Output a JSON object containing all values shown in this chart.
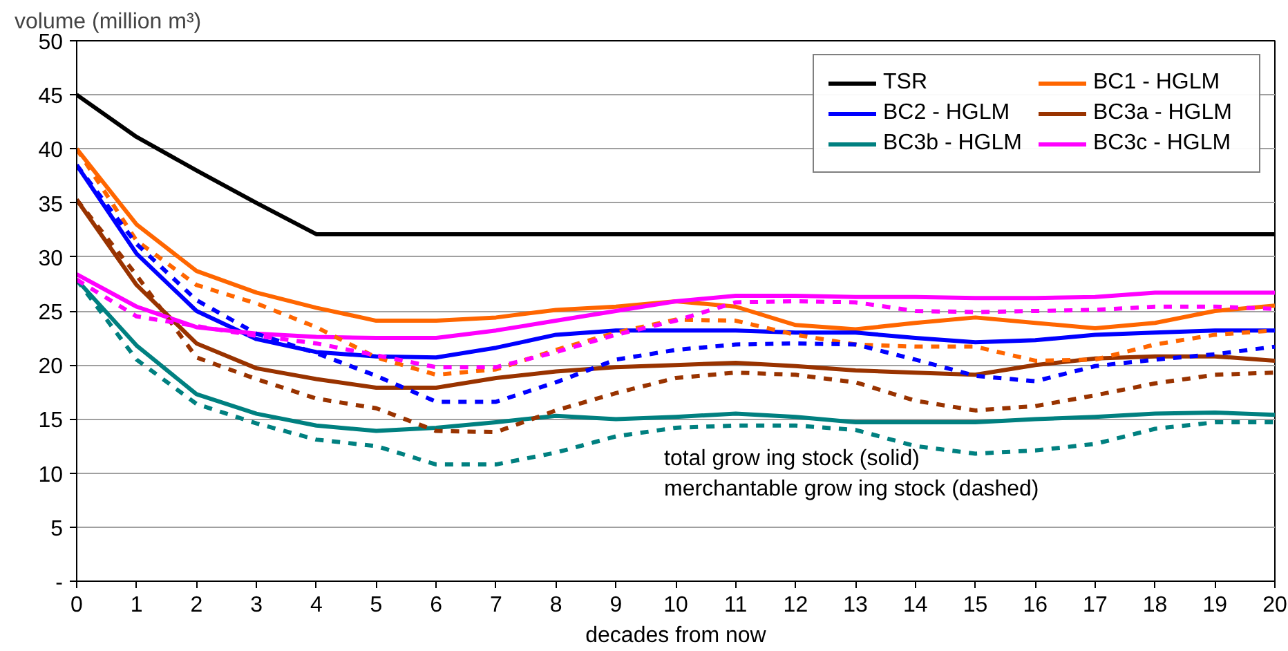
{
  "chart_data": {
    "type": "line",
    "ylabel": "volume (million m³)",
    "xlabel": "decades from now",
    "x": [
      0,
      1,
      2,
      3,
      4,
      5,
      6,
      7,
      8,
      9,
      10,
      11,
      12,
      13,
      14,
      15,
      16,
      17,
      18,
      19,
      20
    ],
    "xlim": [
      0,
      20
    ],
    "xticks": [
      0,
      1,
      2,
      3,
      4,
      5,
      6,
      7,
      8,
      9,
      10,
      11,
      12,
      13,
      14,
      15,
      16,
      17,
      18,
      19,
      20
    ],
    "ylim": [
      0,
      50
    ],
    "yticks": [
      {
        "value": 0,
        "label": "-"
      },
      5,
      10,
      15,
      20,
      25,
      30,
      35,
      40,
      45,
      50
    ],
    "grid": "y",
    "legend": "top right",
    "annotations": [
      "total grow ing stock (solid)",
      "merchantable grow ing stock (dashed)"
    ],
    "series": [
      {
        "name": "TSR",
        "color": "#000000",
        "line_style": "solid",
        "values": [
          45,
          41.1,
          38,
          35,
          32.1,
          32.1,
          32.1,
          32.1,
          32.1,
          32.1,
          32.1,
          32.1,
          32.1,
          32.1,
          32.1,
          32.1,
          32.1,
          32.1,
          32.1,
          32.1,
          32.1
        ]
      },
      {
        "name": "BC1 - HGLM",
        "color": "#ff6600",
        "line_style": "solid",
        "values": [
          40,
          33,
          28.7,
          26.7,
          25.3,
          24.1,
          24.1,
          24.4,
          25.1,
          25.4,
          25.9,
          25.4,
          23.7,
          23.3,
          23.9,
          24.4,
          23.9,
          23.4,
          23.9,
          25,
          25.5
        ]
      },
      {
        "name": "BC2 - HGLM",
        "color": "#0000ff",
        "line_style": "solid",
        "values": [
          38.5,
          30.3,
          25,
          22.4,
          21.2,
          20.8,
          20.7,
          21.6,
          22.8,
          23.2,
          23.2,
          23.2,
          23,
          23,
          22.5,
          22.1,
          22.3,
          22.8,
          23,
          23.2,
          23.2
        ]
      },
      {
        "name": "BC3a - HGLM",
        "color": "#993300",
        "line_style": "solid",
        "values": [
          35.3,
          27.4,
          22,
          19.7,
          18.7,
          17.9,
          17.9,
          18.8,
          19.4,
          19.8,
          20,
          20.2,
          19.9,
          19.5,
          19.3,
          19.1,
          20,
          20.6,
          20.8,
          20.8,
          20.4
        ]
      },
      {
        "name": "BC3b - HGLM",
        "color": "#008080",
        "line_style": "solid",
        "values": [
          27.9,
          21.8,
          17.3,
          15.5,
          14.4,
          13.9,
          14.2,
          14.7,
          15.3,
          15,
          15.2,
          15.5,
          15.2,
          14.7,
          14.7,
          14.7,
          15,
          15.2,
          15.5,
          15.6,
          15.4
        ]
      },
      {
        "name": "BC3c - HGLM",
        "color": "#ff00ff",
        "line_style": "solid",
        "values": [
          28.4,
          25.4,
          23.5,
          22.9,
          22.6,
          22.5,
          22.5,
          23.2,
          24.1,
          25,
          25.9,
          26.4,
          26.4,
          26.3,
          26.3,
          26.2,
          26.2,
          26.3,
          26.7,
          26.7,
          26.7
        ]
      },
      {
        "color": "#ff6600",
        "line_style": "dashed",
        "values": [
          40,
          31.5,
          27.4,
          25.7,
          23.5,
          20.7,
          19.1,
          19.6,
          21.4,
          23,
          24.2,
          24.1,
          22.8,
          21.9,
          21.7,
          21.7,
          20.4,
          20.5,
          21.9,
          22.8,
          23.2
        ]
      },
      {
        "color": "#0000ff",
        "line_style": "dashed",
        "values": [
          38.5,
          31.2,
          26,
          22.9,
          21.1,
          19,
          16.6,
          16.6,
          18.4,
          20.5,
          21.4,
          21.9,
          22,
          21.9,
          20.5,
          19,
          18.5,
          19.9,
          20.5,
          21,
          21.7
        ]
      },
      {
        "color": "#993300",
        "line_style": "dashed",
        "values": [
          35.3,
          28.3,
          20.7,
          18.7,
          16.9,
          16,
          13.9,
          13.8,
          15.8,
          17.4,
          18.8,
          19.3,
          19.1,
          18.4,
          16.7,
          15.8,
          16.2,
          17.2,
          18.3,
          19.1,
          19.3
        ]
      },
      {
        "color": "#008080",
        "line_style": "dashed",
        "values": [
          27.9,
          20.5,
          16.4,
          14.6,
          13.1,
          12.5,
          10.8,
          10.8,
          11.9,
          13.4,
          14.2,
          14.4,
          14.4,
          14,
          12.5,
          11.8,
          12.1,
          12.7,
          14.1,
          14.7,
          14.7
        ]
      },
      {
        "color": "#ff00ff",
        "line_style": "dashed",
        "values": [
          27.9,
          24.5,
          23.6,
          22.7,
          22,
          20.9,
          19.8,
          19.8,
          21.2,
          22.8,
          24.1,
          25.8,
          25.9,
          25.8,
          25,
          24.9,
          25,
          25.1,
          25.4,
          25.4,
          25.2
        ]
      }
    ]
  }
}
